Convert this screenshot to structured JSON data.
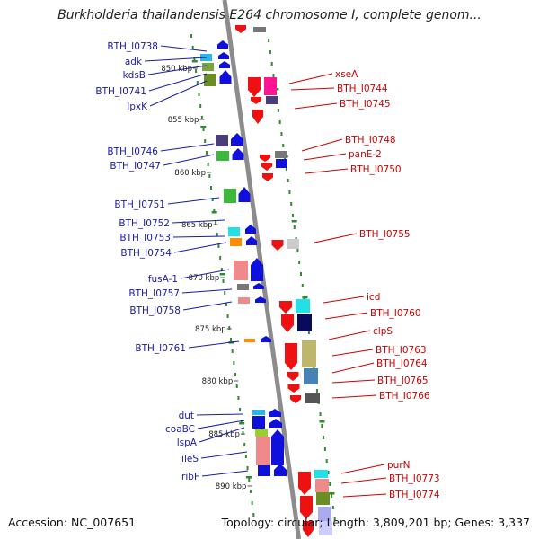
{
  "title": "Burkholderia thailandensis E264 chromosome I, complete genom...",
  "accession": "Accession: NC_007651",
  "topology": "Topology: circular; Length: 3,809,201 bp; Genes: 3,337",
  "colors": {
    "backbone": "#8c8c8c",
    "dots": "#2e8b2e",
    "left_label": "#1a1aa6",
    "right_label": "#cc0000",
    "forward_arrow": "#1010dd",
    "reverse_arrow": "#ee1111"
  },
  "ticks": [
    "850 kbp",
    "855 kbp",
    "860 kbp",
    "865 kbp",
    "870 kbp",
    "875 kbp",
    "880 kbp",
    "885 kbp",
    "890 kbp"
  ],
  "left_genes": [
    "BTH_I0738",
    "adk",
    "kdsB",
    "BTH_I0741",
    "lpxK",
    "BTH_I0746",
    "BTH_I0747",
    "BTH_I0751",
    "BTH_I0752",
    "BTH_I0753",
    "BTH_I0754",
    "fusA-1",
    "BTH_I0757",
    "BTH_I0758",
    "BTH_I0761",
    "dut",
    "coaBC",
    "lspA",
    "ileS",
    "ribF"
  ],
  "right_genes": [
    "xseA",
    "BTH_I0744",
    "BTH_I0745",
    "BTH_I0748",
    "panE-2",
    "BTH_I0750",
    "BTH_I0755",
    "icd",
    "BTH_I0760",
    "clpS",
    "BTH_I0763",
    "BTH_I0764",
    "BTH_I0765",
    "BTH_I0766",
    "purN",
    "BTH_I0773",
    "BTH_I0774"
  ]
}
